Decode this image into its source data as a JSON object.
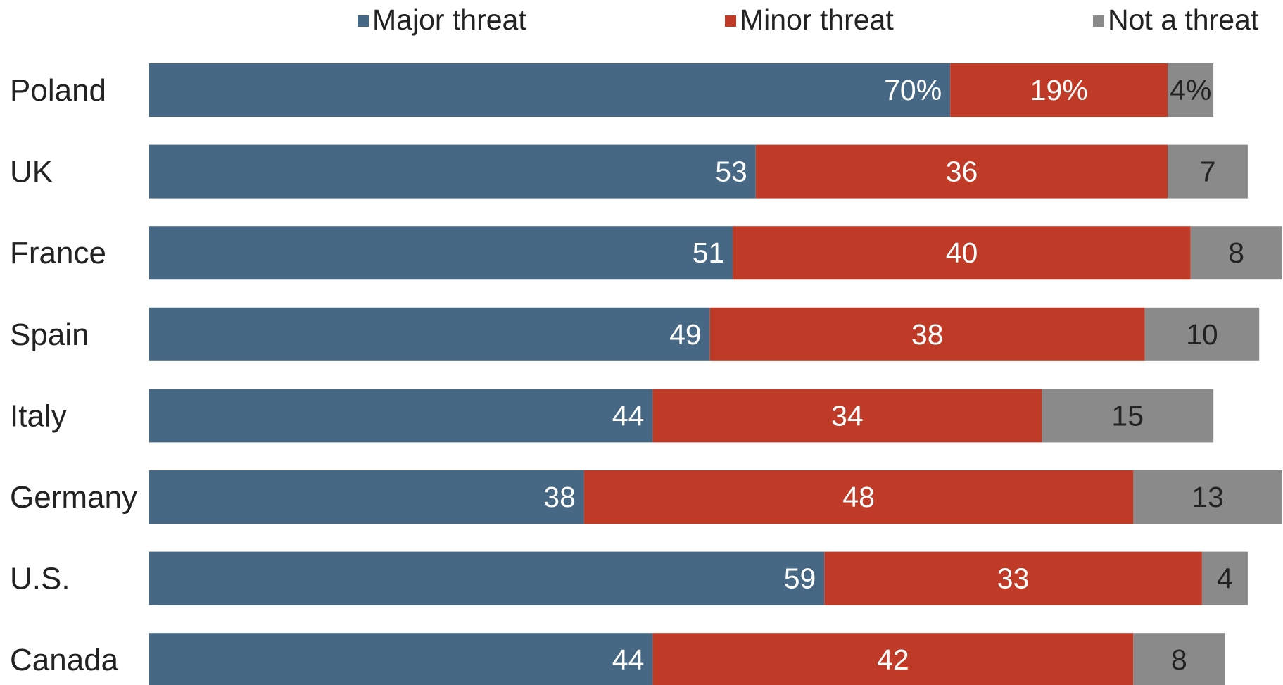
{
  "chart_data": {
    "type": "bar",
    "orientation": "horizontal",
    "stacked": true,
    "categories": [
      "Poland",
      "UK",
      "France",
      "Spain",
      "Italy",
      "Germany",
      "U.S.",
      "Canada"
    ],
    "series": [
      {
        "name": "Major threat",
        "color": "#466884",
        "label_color": "#ffffff",
        "values": [
          70,
          53,
          51,
          49,
          44,
          38,
          59,
          44
        ],
        "labels": [
          "70%",
          "53",
          "51",
          "49",
          "44",
          "38",
          "59",
          "44"
        ]
      },
      {
        "name": "Minor threat",
        "color": "#c03b27",
        "label_color": "#ffffff",
        "values": [
          19,
          36,
          40,
          38,
          34,
          48,
          33,
          42
        ],
        "labels": [
          "19%",
          "36",
          "40",
          "38",
          "34",
          "48",
          "33",
          "42"
        ]
      },
      {
        "name": "Not a threat",
        "color": "#8a8a8a",
        "label_color": "#222222",
        "values": [
          4,
          7,
          8,
          10,
          15,
          13,
          4,
          8
        ],
        "labels": [
          "4%",
          "7",
          "8",
          "10",
          "15",
          "13",
          "4",
          "8"
        ]
      }
    ],
    "xlim": [
      0,
      100
    ],
    "grid": false,
    "legend_position": "top"
  }
}
